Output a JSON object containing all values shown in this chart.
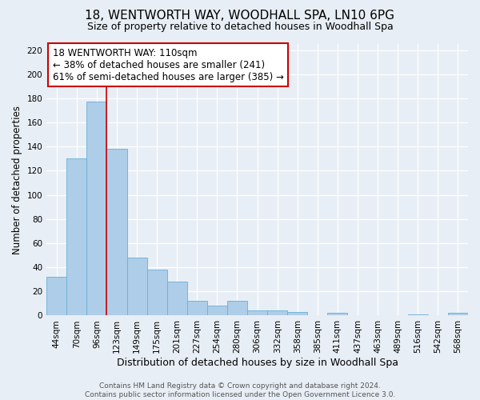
{
  "title": "18, WENTWORTH WAY, WOODHALL SPA, LN10 6PG",
  "subtitle": "Size of property relative to detached houses in Woodhall Spa",
  "xlabel": "Distribution of detached houses by size in Woodhall Spa",
  "ylabel": "Number of detached properties",
  "bin_labels": [
    "44sqm",
    "70sqm",
    "96sqm",
    "123sqm",
    "149sqm",
    "175sqm",
    "201sqm",
    "227sqm",
    "254sqm",
    "280sqm",
    "306sqm",
    "332sqm",
    "358sqm",
    "385sqm",
    "411sqm",
    "437sqm",
    "463sqm",
    "489sqm",
    "516sqm",
    "542sqm",
    "568sqm"
  ],
  "bar_heights": [
    32,
    130,
    177,
    138,
    48,
    38,
    28,
    12,
    8,
    12,
    4,
    4,
    3,
    0,
    2,
    0,
    0,
    0,
    1,
    0,
    2
  ],
  "bar_color": "#aecde8",
  "bar_edge_color": "#6aaed6",
  "vline_x_index": 3,
  "vline_color": "#cc0000",
  "annotation_line1": "18 WENTWORTH WAY: 110sqm",
  "annotation_line2": "← 38% of detached houses are smaller (241)",
  "annotation_line3": "61% of semi-detached houses are larger (385) →",
  "annotation_box_color": "white",
  "annotation_box_edgecolor": "#cc0000",
  "annotation_fontsize": 8.5,
  "ylim": [
    0,
    225
  ],
  "yticks": [
    0,
    20,
    40,
    60,
    80,
    100,
    120,
    140,
    160,
    180,
    200,
    220
  ],
  "bg_color": "#e8eef5",
  "plot_bg_color": "#e8eef5",
  "footer_text": "Contains HM Land Registry data © Crown copyright and database right 2024.\nContains public sector information licensed under the Open Government Licence 3.0.",
  "title_fontsize": 11,
  "subtitle_fontsize": 9,
  "xlabel_fontsize": 9,
  "ylabel_fontsize": 8.5,
  "tick_fontsize": 7.5,
  "footer_fontsize": 6.5
}
